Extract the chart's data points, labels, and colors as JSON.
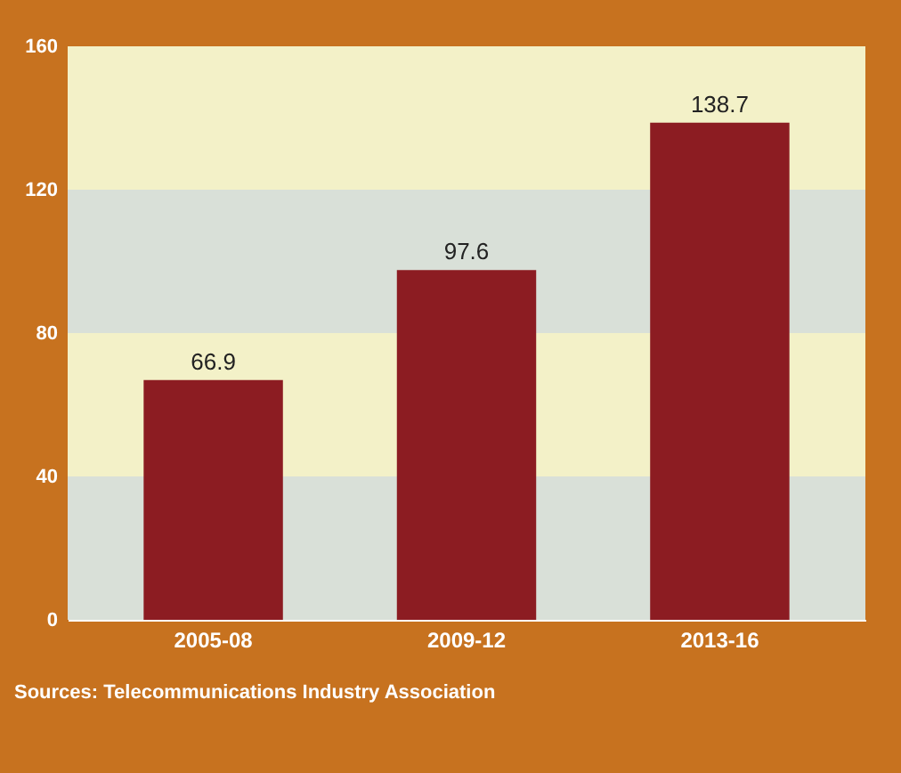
{
  "chart_data": {
    "type": "bar",
    "categories": [
      "2005-08",
      "2009-12",
      "2013-16"
    ],
    "values": [
      66.9,
      97.6,
      138.7
    ],
    "color": "#8c1c22",
    "ylim": [
      0,
      160
    ],
    "yticks": [
      0,
      40,
      80,
      120,
      160
    ],
    "data_labels": true,
    "bands": [
      {
        "axis": "y",
        "from": 0,
        "to": 40,
        "color": "#d9e0d8"
      },
      {
        "axis": "y",
        "from": 40,
        "to": 80,
        "color": "#f3f1c8"
      },
      {
        "axis": "y",
        "from": 80,
        "to": 120,
        "color": "#d9e0d8"
      },
      {
        "axis": "y",
        "from": 120,
        "to": 160,
        "color": "#f3f1c8"
      }
    ],
    "annotations": [
      "Sources: Telecommunications Industry Association"
    ]
  }
}
